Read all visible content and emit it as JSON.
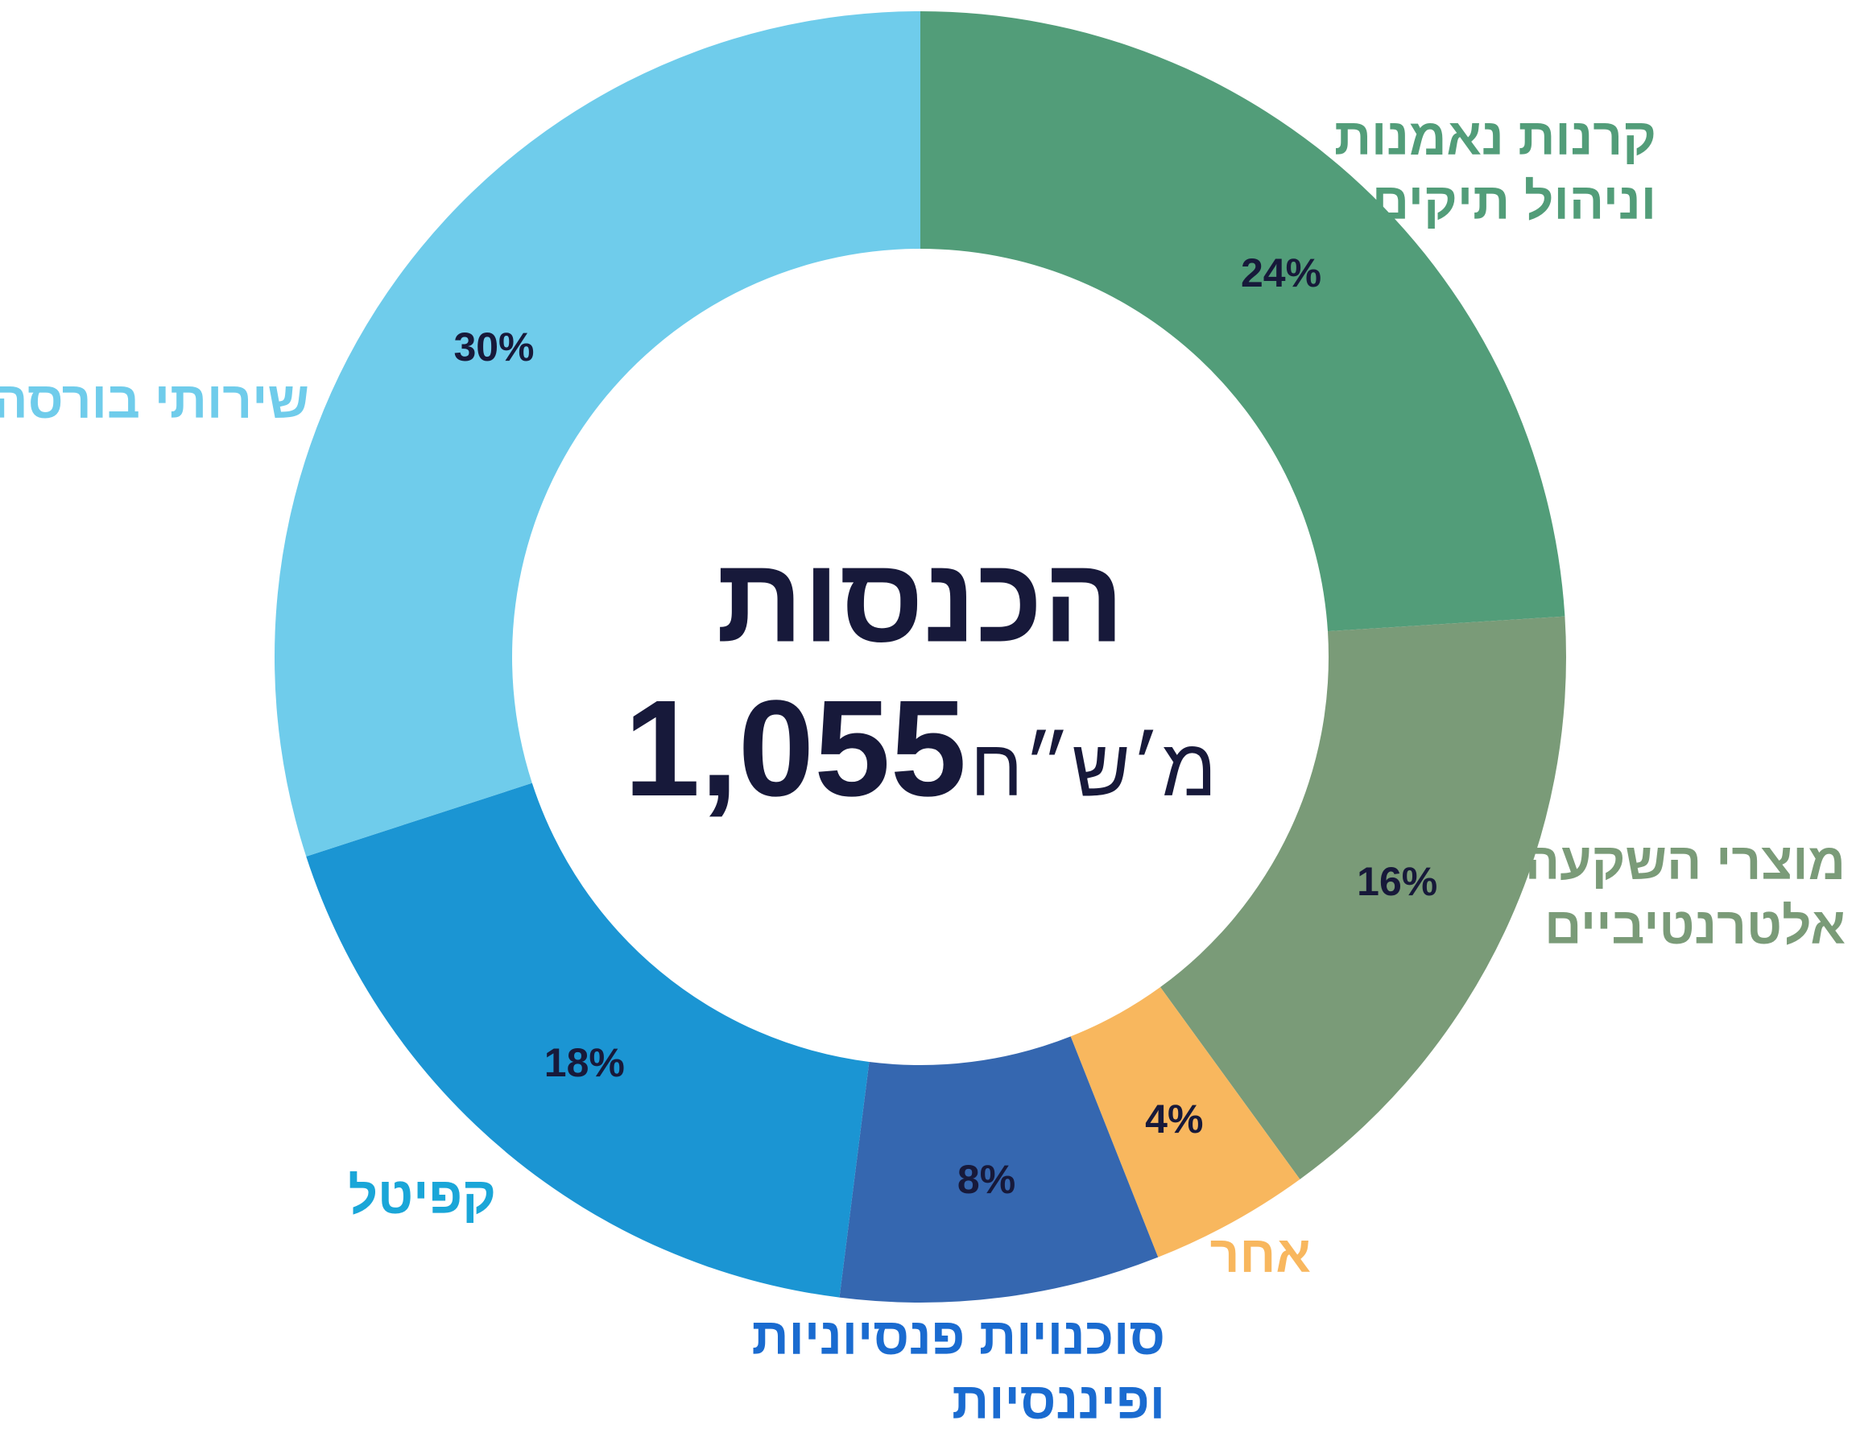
{
  "chart_data": {
    "type": "donut",
    "center_title": "הכנסות",
    "center_value": "1,055",
    "center_unit": "מ׳ש״ח",
    "categories": [
      [
        "קרנות נאמנות",
        "וניהול תיקים"
      ],
      [
        "מוצרי השקעה",
        "אלטרנטיביים"
      ],
      [
        "אחר"
      ],
      [
        "סוכנויות פנסיוניות",
        "ופיננסיות"
      ],
      [
        "קפיטל"
      ],
      [
        "שירותי בורסה"
      ]
    ],
    "values": [
      24,
      16,
      4,
      8,
      18,
      30
    ],
    "value_labels": [
      "24%",
      "16%",
      "4%",
      "8%",
      "18%",
      "30%"
    ],
    "colors": [
      "#529d79",
      "#7a9b78",
      "#f8b75e",
      "#3567b0",
      "#1b95d3",
      "#6fcceb"
    ],
    "label_colors": [
      "#529d79",
      "#7a9b78",
      "#f8b75e",
      "#1a6bd0",
      "#1aa6d8",
      "#6fcceb"
    ]
  }
}
